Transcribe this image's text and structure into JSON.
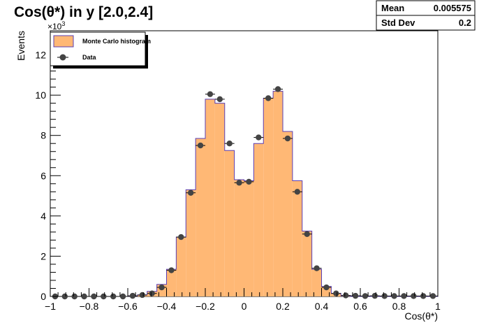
{
  "title": "Cos(θ*) in y [2.0,2.4]",
  "stats": {
    "mean_label": "Mean",
    "mean_value": "0.005575",
    "std_label": "Std Dev",
    "std_value": "0.2"
  },
  "legend": {
    "mc_label": "Monte Carlo histogram",
    "data_label": "Data"
  },
  "colors": {
    "mc_fill": "#ffb875",
    "mc_line": "#5a3fb6",
    "data_marker": "#444444"
  },
  "chart_data": {
    "type": "bar",
    "title": "Cos(θ*) in y [2.0,2.4]",
    "xlabel": "Cos(θ*)",
    "ylabel": "Events",
    "y_multiplier": "×10^3",
    "xlim": [
      -1,
      1
    ],
    "ylim": [
      0,
      13.2
    ],
    "bin_width": 0.05,
    "x_ticks": [
      -1,
      -0.8,
      -0.6,
      -0.4,
      -0.2,
      0,
      0.2,
      0.4,
      0.6,
      0.8,
      1
    ],
    "x_tick_labels": [
      "−1",
      "−0.8",
      "−0.6",
      "−0.4",
      "−0.2",
      "0",
      "0.2",
      "0.4",
      "0.6",
      "0.8",
      "1"
    ],
    "y_ticks": [
      0,
      2,
      4,
      6,
      8,
      10,
      12
    ],
    "y_tick_labels": [
      "0",
      "2",
      "4",
      "6",
      "8",
      "10",
      "12"
    ],
    "legend_position": "top-left",
    "series": [
      {
        "name": "Monte Carlo histogram",
        "style": "histogram",
        "x": [
          -0.975,
          -0.925,
          -0.875,
          -0.825,
          -0.775,
          -0.725,
          -0.675,
          -0.625,
          -0.575,
          -0.525,
          -0.475,
          -0.425,
          -0.375,
          -0.325,
          -0.275,
          -0.225,
          -0.175,
          -0.125,
          -0.075,
          -0.025,
          0.025,
          0.075,
          0.125,
          0.175,
          0.225,
          0.275,
          0.325,
          0.375,
          0.425,
          0.475,
          0.525,
          0.575,
          0.625,
          0.675,
          0.725,
          0.775,
          0.825,
          0.875,
          0.925,
          0.975
        ],
        "values": [
          0,
          0,
          0,
          0,
          0,
          0,
          0,
          0,
          0.02,
          0.08,
          0.25,
          0.6,
          1.35,
          2.95,
          5.3,
          7.85,
          9.8,
          9.6,
          7.25,
          5.8,
          5.75,
          7.6,
          9.85,
          10.2,
          8.2,
          5.75,
          3.25,
          1.35,
          0.5,
          0.15,
          0.03,
          0,
          0,
          0,
          0,
          0,
          0,
          0,
          0,
          0
        ]
      },
      {
        "name": "Data",
        "style": "points",
        "x": [
          -0.975,
          -0.925,
          -0.875,
          -0.825,
          -0.775,
          -0.725,
          -0.675,
          -0.625,
          -0.575,
          -0.525,
          -0.475,
          -0.425,
          -0.375,
          -0.325,
          -0.275,
          -0.225,
          -0.175,
          -0.125,
          -0.075,
          -0.025,
          0.025,
          0.075,
          0.125,
          0.175,
          0.225,
          0.275,
          0.325,
          0.375,
          0.425,
          0.475,
          0.525,
          0.575,
          0.625,
          0.675,
          0.725,
          0.775,
          0.825,
          0.875,
          0.925,
          0.975
        ],
        "values": [
          0,
          0,
          0,
          0,
          0,
          0,
          0,
          0,
          0.03,
          0.07,
          0.15,
          0.45,
          1.3,
          2.95,
          5.15,
          7.5,
          10.05,
          9.8,
          7.6,
          5.65,
          5.7,
          7.9,
          9.85,
          10.3,
          7.85,
          5.2,
          3.1,
          1.4,
          0.45,
          0.15,
          0.05,
          0.03,
          0.02,
          0.03,
          0.02,
          0.02,
          0.02,
          0.02,
          0.02,
          0.02
        ]
      }
    ]
  }
}
